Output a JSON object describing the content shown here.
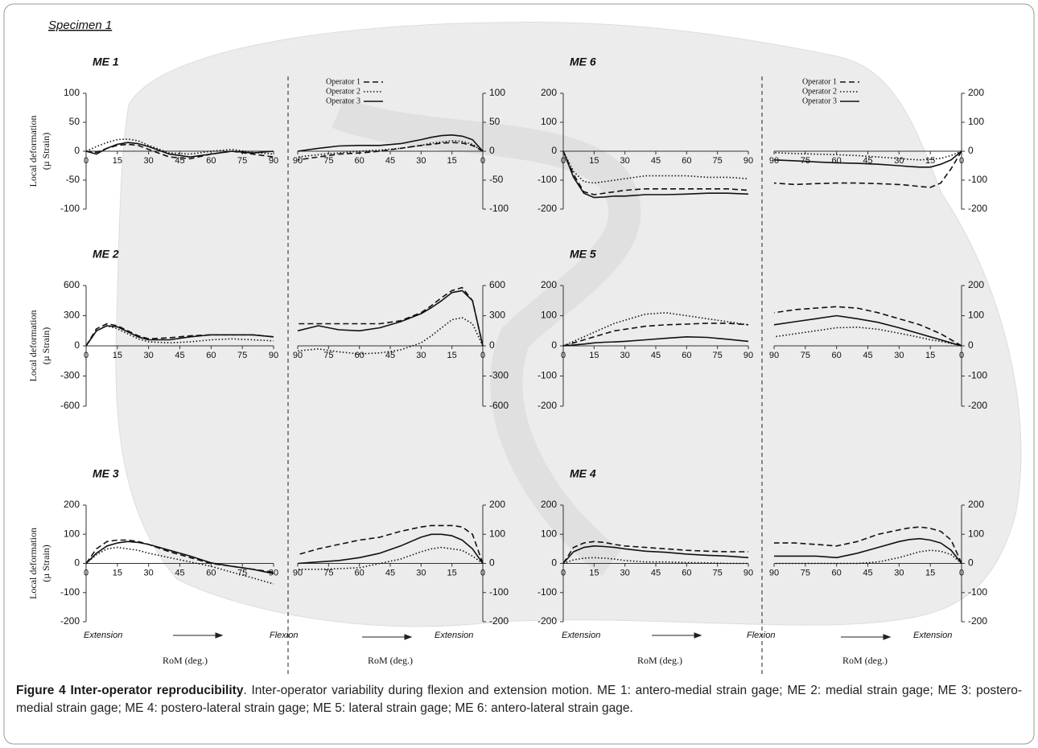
{
  "specimen": "Specimen 1",
  "y_label": [
    "Local deformation",
    "(µ Strain)"
  ],
  "x_label": "RoM (deg.)",
  "motion_labels": [
    "Extension",
    "Flexion",
    "Extension"
  ],
  "caption": {
    "title": "Figure 4 Inter-operator reproducibility",
    "text": ". Inter-operator variability during flexion and extension motion. ME 1: antero-medial strain gage; ME 2: medial strain gage; ME 3: postero-medial strain gage; ME 4: postero-lateral strain gage; ME 5: lateral strain gage; ME 6: antero-lateral strain gage."
  },
  "chart_data": [
    {
      "type": "line",
      "title": "ME 1",
      "y_axis_side": "left",
      "x": [
        0,
        5,
        10,
        15,
        20,
        25,
        30,
        40,
        50,
        60,
        70,
        80,
        90
      ],
      "xlim": [
        0,
        90
      ],
      "xticks": [
        0,
        15,
        30,
        45,
        60,
        75,
        90
      ],
      "ylim": [
        -100,
        100
      ],
      "yticks": [
        -100,
        -50,
        0,
        50,
        100
      ],
      "series": [
        {
          "dash": "dashed",
          "values": [
            0,
            -2,
            5,
            10,
            12,
            10,
            3,
            -10,
            -13,
            -5,
            0,
            -5,
            -10
          ]
        },
        {
          "dash": "dotted",
          "values": [
            0,
            8,
            15,
            20,
            21,
            18,
            10,
            -3,
            -5,
            0,
            3,
            -2,
            -5
          ]
        },
        {
          "dash": "solid",
          "values": [
            0,
            -5,
            5,
            12,
            15,
            13,
            8,
            -5,
            -10,
            -5,
            0,
            -3,
            0
          ]
        }
      ]
    },
    {
      "type": "line",
      "y_axis_side": "right",
      "legend": "upper left",
      "x": [
        0,
        5,
        10,
        15,
        20,
        25,
        30,
        40,
        50,
        60,
        70,
        80,
        90
      ],
      "xlim": [
        90,
        0
      ],
      "xticks": [
        90,
        75,
        60,
        45,
        30,
        15,
        0
      ],
      "ylim": [
        -100,
        100
      ],
      "yticks": [
        -100,
        -50,
        0,
        50,
        100
      ],
      "series": [
        {
          "name": "Operator 1",
          "dash": "dashed",
          "values": [
            0,
            10,
            14,
            15,
            14,
            12,
            10,
            5,
            0,
            -3,
            -5,
            -10,
            -15
          ]
        },
        {
          "name": "Operator 2",
          "dash": "dotted",
          "values": [
            0,
            12,
            17,
            18,
            16,
            14,
            10,
            5,
            2,
            0,
            -3,
            -6,
            -10
          ]
        },
        {
          "name": "Operator 3",
          "dash": "solid",
          "values": [
            0,
            20,
            26,
            28,
            27,
            24,
            20,
            13,
            10,
            10,
            9,
            5,
            0
          ]
        }
      ]
    },
    {
      "type": "line",
      "title": "ME 6",
      "y_axis_side": "left",
      "x": [
        0,
        5,
        10,
        15,
        20,
        25,
        30,
        40,
        50,
        60,
        70,
        80,
        90
      ],
      "xlim": [
        0,
        90
      ],
      "xticks": [
        0,
        15,
        30,
        45,
        60,
        75,
        90
      ],
      "ylim": [
        -200,
        200
      ],
      "yticks": [
        -200,
        -100,
        0,
        100,
        200
      ],
      "series": [
        {
          "dash": "dashed",
          "values": [
            0,
            -80,
            -140,
            -150,
            -145,
            -140,
            -135,
            -130,
            -130,
            -130,
            -130,
            -130,
            -135
          ]
        },
        {
          "dash": "dotted",
          "values": [
            0,
            -70,
            -105,
            -110,
            -105,
            -100,
            -95,
            -85,
            -85,
            -85,
            -90,
            -90,
            -95
          ]
        },
        {
          "dash": "solid",
          "values": [
            0,
            -90,
            -145,
            -160,
            -158,
            -155,
            -155,
            -150,
            -150,
            -148,
            -145,
            -145,
            -148
          ]
        }
      ]
    },
    {
      "type": "line",
      "y_axis_side": "right",
      "legend": "upper left",
      "x": [
        0,
        5,
        10,
        15,
        20,
        25,
        30,
        40,
        50,
        60,
        70,
        80,
        90
      ],
      "xlim": [
        90,
        0
      ],
      "xticks": [
        90,
        75,
        60,
        45,
        30,
        15,
        0
      ],
      "ylim": [
        -200,
        200
      ],
      "yticks": [
        -200,
        -100,
        0,
        100,
        200
      ],
      "series": [
        {
          "name": "Operator 1",
          "dash": "dashed",
          "values": [
            0,
            -60,
            -110,
            -125,
            -122,
            -118,
            -115,
            -112,
            -110,
            -110,
            -112,
            -115,
            -110
          ]
        },
        {
          "name": "Operator 2",
          "dash": "dotted",
          "values": [
            0,
            -15,
            -25,
            -28,
            -30,
            -28,
            -25,
            -20,
            -15,
            -12,
            -10,
            -8,
            -5
          ]
        },
        {
          "name": "Operator 3",
          "dash": "solid",
          "values": [
            0,
            -30,
            -45,
            -55,
            -55,
            -53,
            -50,
            -45,
            -42,
            -40,
            -37,
            -33,
            -30
          ]
        }
      ]
    },
    {
      "type": "line",
      "title": "ME 2",
      "y_axis_side": "left",
      "x": [
        0,
        5,
        10,
        15,
        20,
        25,
        30,
        40,
        50,
        60,
        70,
        80,
        90
      ],
      "xlim": [
        0,
        90
      ],
      "xticks": [
        0,
        15,
        30,
        45,
        60,
        75,
        90
      ],
      "ylim": [
        -600,
        600
      ],
      "yticks": [
        -600,
        -300,
        0,
        300,
        600
      ],
      "series": [
        {
          "dash": "dashed",
          "values": [
            0,
            170,
            220,
            200,
            150,
            100,
            70,
            80,
            100,
            110,
            110,
            110,
            90
          ]
        },
        {
          "dash": "dotted",
          "values": [
            0,
            150,
            200,
            170,
            120,
            70,
            40,
            30,
            40,
            60,
            70,
            60,
            50
          ]
        },
        {
          "dash": "solid",
          "values": [
            0,
            150,
            200,
            190,
            140,
            90,
            60,
            60,
            90,
            110,
            110,
            110,
            90
          ]
        }
      ]
    },
    {
      "type": "line",
      "y_axis_side": "right",
      "x": [
        0,
        5,
        10,
        15,
        20,
        25,
        30,
        40,
        50,
        60,
        70,
        80,
        90
      ],
      "xlim": [
        90,
        0
      ],
      "xticks": [
        90,
        75,
        60,
        45,
        30,
        15,
        0
      ],
      "ylim": [
        -600,
        600
      ],
      "yticks": [
        -600,
        -300,
        0,
        300,
        600
      ],
      "series": [
        {
          "dash": "dashed",
          "values": [
            0,
            450,
            580,
            550,
            480,
            400,
            330,
            250,
            220,
            220,
            220,
            220,
            220
          ]
        },
        {
          "dash": "dotted",
          "values": [
            0,
            220,
            280,
            260,
            180,
            100,
            30,
            -40,
            -70,
            -80,
            -60,
            -30,
            -50
          ]
        },
        {
          "dash": "solid",
          "values": [
            0,
            450,
            550,
            530,
            450,
            380,
            320,
            240,
            180,
            150,
            160,
            200,
            150
          ]
        }
      ]
    },
    {
      "type": "line",
      "title": "ME 5",
      "y_axis_side": "left",
      "x": [
        0,
        5,
        10,
        15,
        20,
        25,
        30,
        40,
        50,
        60,
        70,
        80,
        90
      ],
      "xlim": [
        0,
        90
      ],
      "xticks": [
        0,
        15,
        30,
        45,
        60,
        75,
        90
      ],
      "ylim": [
        -200,
        200
      ],
      "yticks": [
        -200,
        -100,
        0,
        100,
        200
      ],
      "series": [
        {
          "dash": "dashed",
          "values": [
            0,
            10,
            20,
            30,
            40,
            50,
            55,
            65,
            70,
            72,
            75,
            75,
            70
          ]
        },
        {
          "dash": "dotted",
          "values": [
            0,
            15,
            30,
            45,
            60,
            75,
            85,
            105,
            110,
            100,
            90,
            80,
            70
          ]
        },
        {
          "dash": "solid",
          "values": [
            0,
            3,
            6,
            10,
            12,
            13,
            15,
            20,
            25,
            30,
            28,
            22,
            15
          ]
        }
      ]
    },
    {
      "type": "line",
      "y_axis_side": "right",
      "x": [
        0,
        5,
        10,
        15,
        20,
        25,
        30,
        40,
        50,
        60,
        70,
        80,
        90
      ],
      "xlim": [
        90,
        0
      ],
      "xticks": [
        90,
        75,
        60,
        45,
        30,
        15,
        0
      ],
      "ylim": [
        -200,
        200
      ],
      "yticks": [
        -200,
        -100,
        0,
        100,
        200
      ],
      "series": [
        {
          "dash": "dashed",
          "values": [
            0,
            20,
            40,
            55,
            70,
            80,
            90,
            110,
            125,
            130,
            125,
            120,
            110
          ]
        },
        {
          "dash": "dotted",
          "values": [
            0,
            8,
            15,
            20,
            28,
            35,
            42,
            55,
            62,
            60,
            50,
            40,
            30
          ]
        },
        {
          "dash": "solid",
          "values": [
            0,
            10,
            20,
            30,
            40,
            50,
            60,
            78,
            90,
            100,
            90,
            80,
            70
          ]
        }
      ]
    },
    {
      "type": "line",
      "title": "ME 3",
      "y_axis_side": "left",
      "x": [
        0,
        5,
        10,
        15,
        20,
        25,
        30,
        40,
        50,
        60,
        70,
        80,
        90
      ],
      "xlim": [
        0,
        90
      ],
      "xticks": [
        0,
        15,
        30,
        45,
        60,
        75,
        90
      ],
      "ylim": [
        -200,
        200
      ],
      "yticks": [
        -200,
        -100,
        0,
        100,
        200
      ],
      "series": [
        {
          "dash": "dashed",
          "values": [
            0,
            50,
            75,
            80,
            80,
            75,
            65,
            40,
            20,
            0,
            -10,
            -20,
            -30
          ]
        },
        {
          "dash": "dotted",
          "values": [
            0,
            30,
            50,
            55,
            50,
            45,
            35,
            20,
            5,
            -10,
            -30,
            -50,
            -70
          ]
        },
        {
          "dash": "solid",
          "values": [
            0,
            35,
            60,
            70,
            75,
            72,
            65,
            45,
            25,
            2,
            -10,
            -20,
            -35
          ]
        }
      ]
    },
    {
      "type": "line",
      "y_axis_side": "right",
      "x": [
        0,
        5,
        10,
        15,
        20,
        25,
        30,
        40,
        50,
        60,
        70,
        80,
        90
      ],
      "xlim": [
        90,
        0
      ],
      "xticks": [
        90,
        75,
        60,
        45,
        30,
        15,
        0
      ],
      "ylim": [
        -200,
        200
      ],
      "yticks": [
        -200,
        -100,
        0,
        100,
        200
      ],
      "series": [
        {
          "dash": "dashed",
          "values": [
            0,
            100,
            125,
            130,
            130,
            130,
            125,
            110,
            90,
            80,
            65,
            50,
            30
          ]
        },
        {
          "dash": "dotted",
          "values": [
            0,
            25,
            45,
            50,
            55,
            50,
            40,
            15,
            0,
            -15,
            -18,
            -20,
            -20
          ]
        },
        {
          "dash": "solid",
          "values": [
            0,
            50,
            80,
            95,
            100,
            100,
            90,
            60,
            35,
            20,
            10,
            5,
            0
          ]
        }
      ]
    },
    {
      "type": "line",
      "title": "ME 4",
      "y_axis_side": "left",
      "x": [
        0,
        5,
        10,
        15,
        20,
        25,
        30,
        40,
        50,
        60,
        70,
        80,
        90
      ],
      "xlim": [
        0,
        90
      ],
      "xticks": [
        0,
        15,
        30,
        45,
        60,
        75,
        90
      ],
      "ylim": [
        -200,
        200
      ],
      "yticks": [
        -200,
        -100,
        0,
        100,
        200
      ],
      "series": [
        {
          "dash": "dashed",
          "values": [
            0,
            55,
            70,
            75,
            72,
            65,
            60,
            55,
            50,
            45,
            42,
            40,
            40
          ]
        },
        {
          "dash": "dotted",
          "values": [
            0,
            12,
            18,
            20,
            18,
            15,
            10,
            5,
            5,
            3,
            2,
            0,
            0
          ]
        },
        {
          "dash": "solid",
          "values": [
            0,
            40,
            55,
            60,
            58,
            55,
            50,
            42,
            38,
            32,
            28,
            25,
            20
          ]
        }
      ]
    },
    {
      "type": "line",
      "y_axis_side": "right",
      "x": [
        0,
        5,
        10,
        15,
        20,
        25,
        30,
        40,
        50,
        60,
        70,
        80,
        90
      ],
      "xlim": [
        90,
        0
      ],
      "xticks": [
        90,
        75,
        60,
        45,
        30,
        15,
        0
      ],
      "ylim": [
        -200,
        200
      ],
      "yticks": [
        -200,
        -100,
        0,
        100,
        200
      ],
      "series": [
        {
          "dash": "dashed",
          "values": [
            0,
            80,
            110,
            120,
            125,
            122,
            115,
            100,
            75,
            60,
            65,
            70,
            70
          ]
        },
        {
          "dash": "dotted",
          "values": [
            0,
            30,
            42,
            45,
            40,
            30,
            20,
            5,
            0,
            0,
            0,
            0,
            0
          ]
        },
        {
          "dash": "solid",
          "values": [
            0,
            45,
            70,
            80,
            85,
            82,
            75,
            55,
            35,
            20,
            25,
            25,
            25
          ]
        }
      ]
    }
  ]
}
